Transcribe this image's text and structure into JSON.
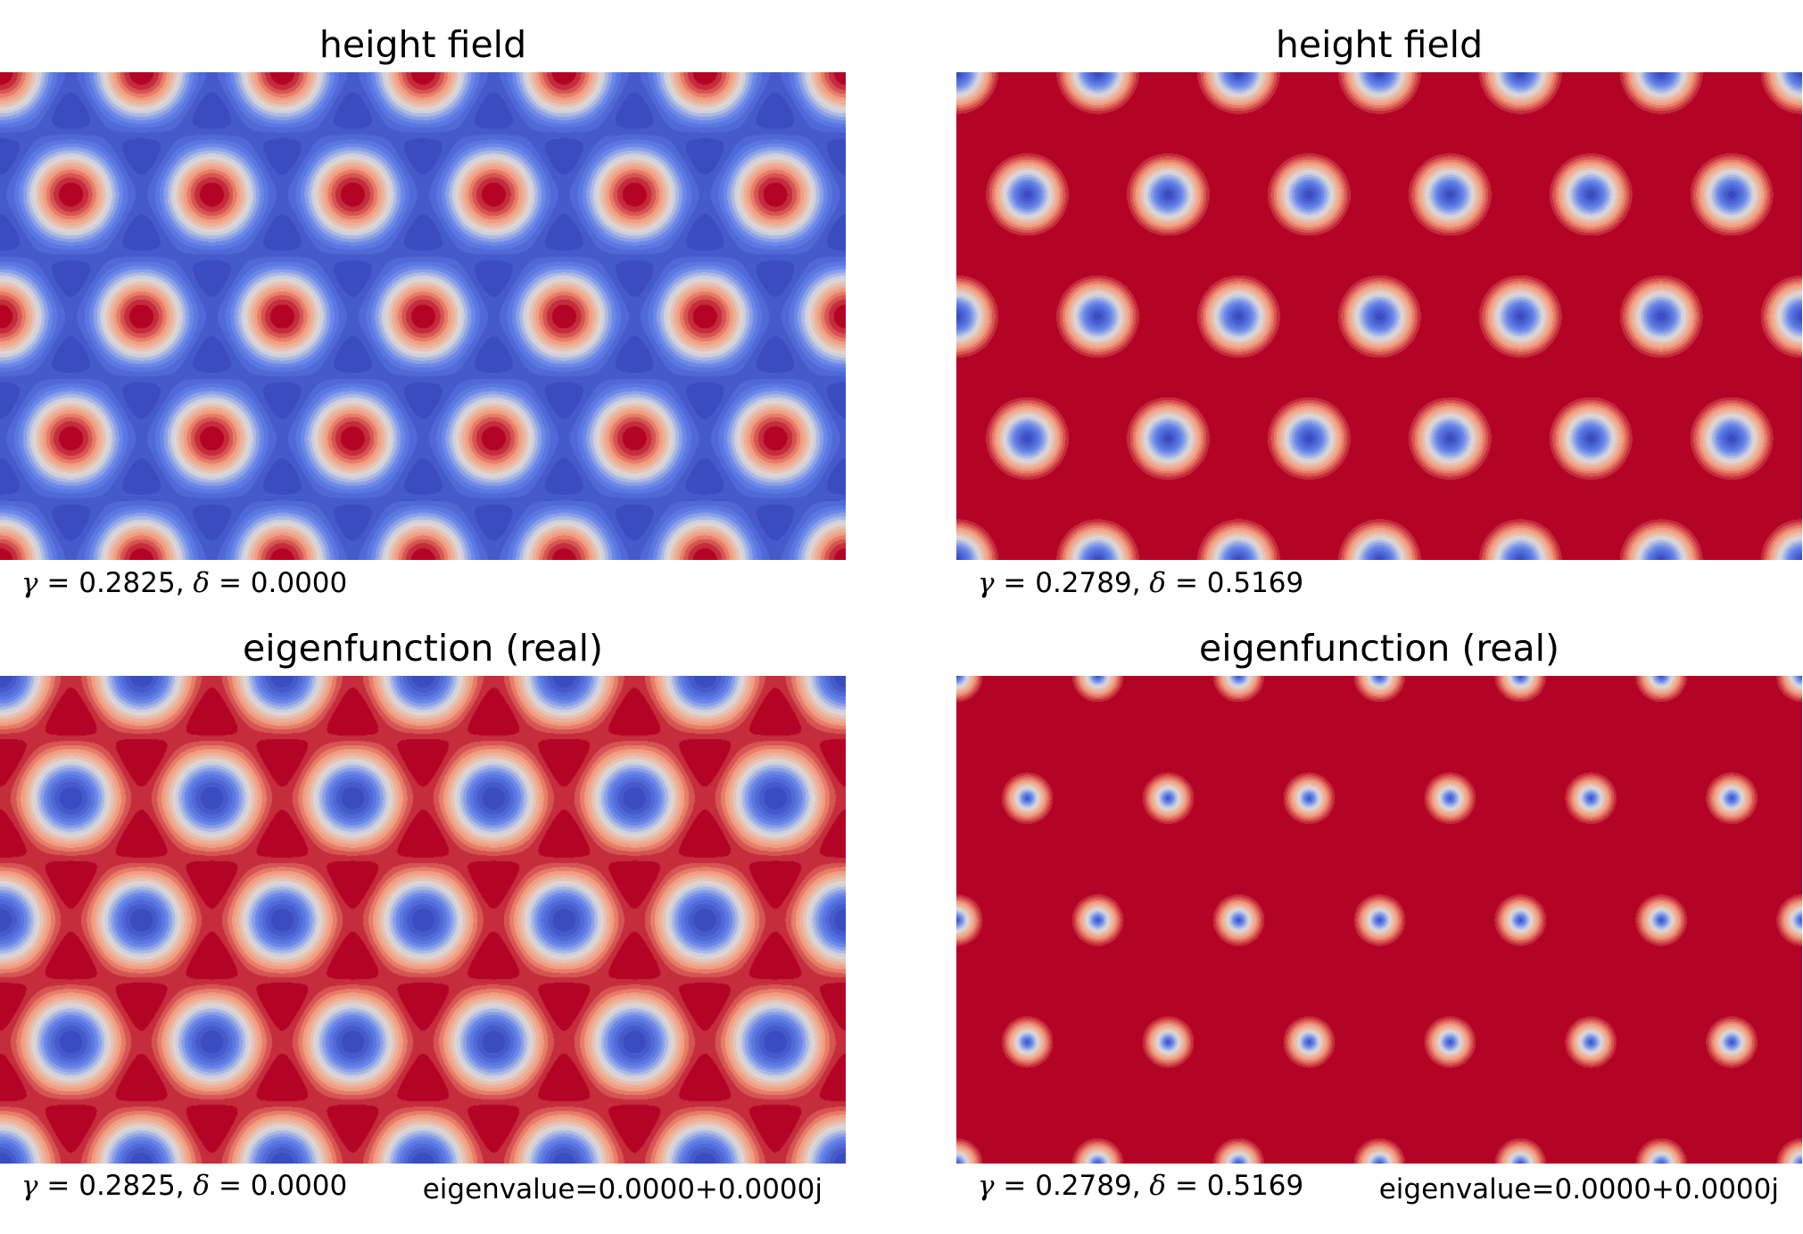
{
  "chart_data": [
    {
      "type": "heatmap",
      "title": "height field",
      "params": {
        "gamma": "0.2825",
        "delta": "0.0000"
      },
      "eigenvalue": "",
      "field": "hexagonal contour map: red spots (max) on triangular lattice, blue background",
      "invert": false,
      "sharpness": 0.05
    },
    {
      "type": "heatmap",
      "title": "height field",
      "params": {
        "gamma": "0.2789",
        "delta": "0.5169"
      },
      "eigenvalue": "",
      "field": "hexagonal contour map: blue spots (min) with pale rings on red background",
      "invert": true,
      "sharpness": 0.55
    },
    {
      "type": "heatmap",
      "title": "eigenfunction (real)",
      "params": {
        "gamma": "0.2825",
        "delta": "0.0000"
      },
      "eigenvalue": "eigenvalue=0.0000+0.0000j",
      "field": "hexagonal contour map: blue spots on orange background with red triangular patches",
      "invert": true,
      "sharpness": 0.05
    },
    {
      "type": "heatmap",
      "title": "eigenfunction (real)",
      "params": {
        "gamma": "0.2789",
        "delta": "0.5169"
      },
      "eigenvalue": "eigenvalue=0.0000+0.0000j",
      "field": "hexagonal contour map: small blue spots with pale rings on red background",
      "invert": true,
      "sharpness": 0.9
    }
  ],
  "colors": {
    "colormap": "coolwarm",
    "low": "#3b4cc0",
    "mid": "#dddddd",
    "high": "#b40426"
  }
}
